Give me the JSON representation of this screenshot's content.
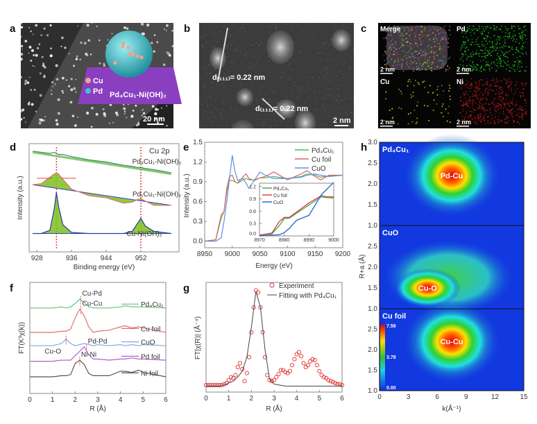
{
  "panel_labels": {
    "a": "a",
    "b": "b",
    "c": "c",
    "d": "d",
    "e": "e",
    "f": "f",
    "g": "g",
    "h": "h"
  },
  "panel_a": {
    "legend_cu": "Cu",
    "legend_pd": "Pd",
    "model_label": "Pd₄Cu₁-Ni(OH)₂",
    "scale_bar": "20 nm",
    "colors": {
      "cu": "#f0a48e",
      "pd": "#3fc6d0",
      "support": "#8a3fc0"
    }
  },
  "panel_b": {
    "spacing_1": "d₍₁₁₁₎= 0.22 nm",
    "spacing_2": "d₍₁₁₁₎= 0.22 nm",
    "scale_bar": "2 nm"
  },
  "panel_c": {
    "maps": [
      {
        "label": "Merge",
        "scale_bar": "2 nm",
        "color": "#c8b070"
      },
      {
        "label": "Pd",
        "scale_bar": "2 nm",
        "color": "#22c022"
      },
      {
        "label": "Cu",
        "scale_bar": "2 nm",
        "color": "#d8d020"
      },
      {
        "label": "Ni",
        "scale_bar": "2 nm",
        "color": "#d01818"
      }
    ]
  },
  "chart_data": [
    {
      "id": "d",
      "type": "line",
      "title": "Cu 2p",
      "xlabel": "Binding energy (eV)",
      "ylabel": "Intensity (a.u.)",
      "xlim": [
        926.2,
        960.8
      ],
      "ylim": [
        0,
        1
      ],
      "xticks": [
        928,
        936,
        944,
        952
      ],
      "reference_lines": [
        932.5,
        952
      ],
      "x": [
        927,
        929,
        931,
        932,
        932.5,
        933,
        934,
        936,
        940,
        944,
        948,
        950,
        951,
        952,
        953,
        955,
        959
      ],
      "series": [
        {
          "name": "Pd₄Cu₁-Ni(OH)₂",
          "color": "#2d8a5a",
          "values": [
            0.93,
            0.92,
            0.91,
            0.92,
            0.91,
            0.9,
            0.9,
            0.88,
            0.85,
            0.83,
            0.8,
            0.79,
            0.78,
            0.78,
            0.77,
            0.76,
            0.73
          ]
        },
        {
          "name": "Pd₁Cu₁-Ni(OH)₂",
          "color": "#e07070",
          "values": [
            0.62,
            0.63,
            0.69,
            0.72,
            0.73,
            0.72,
            0.67,
            0.58,
            0.52,
            0.5,
            0.45,
            0.46,
            0.48,
            0.49,
            0.47,
            0.43,
            0.43
          ]
        },
        {
          "name": "Cu-Ni(OH)₂",
          "color": "#2a3a9a",
          "values": [
            0.17,
            0.17,
            0.2,
            0.4,
            0.55,
            0.42,
            0.25,
            0.18,
            0.17,
            0.17,
            0.17,
            0.19,
            0.25,
            0.31,
            0.24,
            0.19,
            0.17
          ]
        }
      ]
    },
    {
      "id": "e",
      "type": "line",
      "xlabel": "Energy (eV)",
      "ylabel": "Intensity (a.u.)",
      "xlim": [
        8950,
        9200
      ],
      "ylim": [
        -0.1,
        1.5
      ],
      "xticks": [
        8950,
        9000,
        9050,
        9100,
        9150,
        9200
      ],
      "yticks": [
        0.0,
        0.3,
        0.6,
        0.9,
        1.2,
        1.5
      ],
      "legend": "top-right",
      "x": [
        8950,
        8970,
        8980,
        8985,
        8990,
        8995,
        9000,
        9005,
        9010,
        9020,
        9025,
        9030,
        9040,
        9050,
        9060,
        9075,
        9100,
        9125,
        9135,
        9150,
        9160,
        9175,
        9200
      ],
      "series": [
        {
          "name": "Pd₄Cu₁",
          "color": "#50b860",
          "values": [
            0,
            0.02,
            0.35,
            0.45,
            0.75,
            0.92,
            0.92,
            0.9,
            0.88,
            0.93,
            0.95,
            0.93,
            0.93,
            0.96,
            0.96,
            0.98,
            0.95,
            0.98,
            1.02,
            1.0,
            0.97,
            0.99,
            1.0
          ]
        },
        {
          "name": "Cu foil",
          "color": "#e06060",
          "values": [
            0,
            0.02,
            0.4,
            0.45,
            0.8,
            0.98,
            1.0,
            0.9,
            0.88,
            0.98,
            1.02,
            0.95,
            0.92,
            0.96,
            0.98,
            1.05,
            0.93,
            1.02,
            1.07,
            0.98,
            0.93,
            1.0,
            1.0
          ]
        },
        {
          "name": "CuO",
          "color": "#6090e0",
          "values": [
            0,
            0,
            0.05,
            0.3,
            0.6,
            0.95,
            1.3,
            1.05,
            0.92,
            0.95,
            0.88,
            0.8,
            0.92,
            1.05,
            1.0,
            0.95,
            0.95,
            0.97,
            1.0,
            1.02,
            1.0,
            0.98,
            1.0
          ]
        }
      ],
      "inset": {
        "xlim": [
          8970,
          9000
        ],
        "ylim": [
          0,
          1.28
        ],
        "xticks": [
          8970,
          8980,
          8990,
          9000
        ],
        "yticks": [
          0.0,
          0.3,
          0.6,
          0.9,
          1.2
        ],
        "x": [
          8970,
          8975,
          8978,
          8980,
          8982,
          8985,
          8990,
          8995,
          8997,
          9000
        ],
        "series": [
          {
            "name": "Pd₄Cu₁",
            "color": "#40b050",
            "values": [
              0.02,
              0.05,
              0.25,
              0.42,
              0.43,
              0.55,
              0.75,
              0.95,
              0.93,
              0.92
            ]
          },
          {
            "name": "Cu foil",
            "color": "#e04040",
            "values": [
              0.02,
              0.07,
              0.35,
              0.45,
              0.45,
              0.58,
              0.8,
              0.98,
              0.95,
              0.95
            ]
          },
          {
            "name": "CuO",
            "color": "#2a6ad0",
            "values": [
              0,
              0.02,
              0.03,
              0.08,
              0.18,
              0.38,
              0.5,
              1.0,
              1.12,
              1.3
            ]
          }
        ]
      }
    },
    {
      "id": "f",
      "type": "line",
      "xlabel": "R (Å)",
      "ylabel": "FT(K³χ(k))",
      "xlim": [
        0,
        6
      ],
      "ylim": [
        0,
        1
      ],
      "xticks": [
        0,
        1,
        2,
        3,
        4,
        5,
        6
      ],
      "x": [
        0,
        1,
        1.4,
        1.6,
        1.8,
        2.0,
        2.2,
        2.4,
        2.6,
        2.8,
        3,
        3.5,
        4,
        4.2,
        4.5,
        4.8,
        5,
        6
      ],
      "series": [
        {
          "name": "Pd₄Cu₁",
          "color": "#60c080",
          "values": [
            0.77,
            0.77,
            0.78,
            0.77,
            0.78,
            0.81,
            0.85,
            0.82,
            0.78,
            0.77,
            0.77,
            0.77,
            0.78,
            0.79,
            0.78,
            0.78,
            0.78,
            0.77
          ],
          "peak_label": "Cu-Pd",
          "peak_R": 2.25
        },
        {
          "name": "Cu foil",
          "color": "#e07070",
          "values": [
            0.55,
            0.55,
            0.56,
            0.56,
            0.58,
            0.68,
            0.76,
            0.7,
            0.6,
            0.55,
            0.56,
            0.57,
            0.6,
            0.61,
            0.59,
            0.6,
            0.59,
            0.55
          ],
          "peak_label": "Cu-Cu",
          "peak_R": 2.25
        },
        {
          "name": "CuO",
          "color": "#80a8e0",
          "values": [
            0.43,
            0.43,
            0.45,
            0.49,
            0.45,
            0.43,
            0.44,
            0.45,
            0.44,
            0.43,
            0.44,
            0.43,
            0.44,
            0.43,
            0.44,
            0.43,
            0.44,
            0.43
          ],
          "peak_label": "Cu-O",
          "peak_R": 1.6
        },
        {
          "name": "Pd foil",
          "color": "#b060d0",
          "values": [
            0.29,
            0.29,
            0.3,
            0.3,
            0.3,
            0.34,
            0.38,
            0.42,
            0.35,
            0.31,
            0.31,
            0.3,
            0.31,
            0.31,
            0.32,
            0.31,
            0.31,
            0.3
          ],
          "peak_label": "Pd-Pd",
          "peak_R": 2.5
        },
        {
          "name": "Ni foil",
          "color": "#555555",
          "values": [
            0.15,
            0.15,
            0.16,
            0.16,
            0.17,
            0.27,
            0.3,
            0.26,
            0.18,
            0.16,
            0.16,
            0.16,
            0.2,
            0.2,
            0.19,
            0.21,
            0.19,
            0.15
          ],
          "peak_label": "Ni-Ni",
          "peak_R": 2.2
        }
      ]
    },
    {
      "id": "g",
      "type": "scatter",
      "xlabel": "R (Å)",
      "ylabel": "FT|χ(R)| (Å⁻⁴)",
      "xlim": [
        0,
        6
      ],
      "ylim": [
        -0.05,
        1.05
      ],
      "xticks": [
        0,
        1,
        2,
        3,
        4,
        5,
        6
      ],
      "legend": "top-right",
      "experiment": {
        "name": "Experiment",
        "color": "#e03030",
        "x": [
          0,
          0.1,
          0.2,
          0.3,
          0.4,
          0.5,
          0.6,
          0.7,
          0.8,
          0.9,
          1.0,
          1.1,
          1.2,
          1.3,
          1.4,
          1.5,
          1.6,
          1.7,
          1.8,
          1.9,
          2.0,
          2.1,
          2.2,
          2.3,
          2.4,
          2.5,
          2.6,
          2.7,
          2.8,
          2.9,
          3.0,
          3.1,
          3.2,
          3.3,
          3.4,
          3.5,
          3.6,
          3.7,
          3.8,
          3.9,
          4.0,
          4.1,
          4.2,
          4.3,
          4.4,
          4.5,
          4.6,
          4.7,
          4.8,
          4.9,
          5.0,
          5.1,
          5.2,
          5.3,
          5.4,
          5.5,
          5.6,
          5.7,
          5.8,
          5.9,
          6.0
        ],
        "y": [
          0.02,
          0.02,
          0.02,
          0.02,
          0.02,
          0.02,
          0.02,
          0.02,
          0.03,
          0.04,
          0.07,
          0.1,
          0.09,
          0.12,
          0.2,
          0.24,
          0.18,
          0.06,
          0.14,
          0.3,
          0.55,
          0.8,
          0.97,
          0.95,
          0.8,
          0.55,
          0.3,
          0.12,
          0.07,
          0.06,
          0.07,
          0.1,
          0.13,
          0.17,
          0.17,
          0.15,
          0.14,
          0.16,
          0.22,
          0.28,
          0.33,
          0.35,
          0.31,
          0.24,
          0.2,
          0.22,
          0.26,
          0.28,
          0.27,
          0.22,
          0.16,
          0.12,
          0.1,
          0.09,
          0.07,
          0.06,
          0.05,
          0.04,
          0.03,
          0.03,
          0.02
        ]
      },
      "fit": {
        "name": "Fitting with Pd₄Cu₁",
        "color": "#444444",
        "x": [
          0,
          0.6,
          0.8,
          1.0,
          1.2,
          1.4,
          1.6,
          1.8,
          2.0,
          2.2,
          2.4,
          2.6,
          2.8,
          3.0,
          3.5,
          6.0
        ],
        "y": [
          0.01,
          0.01,
          0.02,
          0.04,
          0.06,
          0.1,
          0.16,
          0.3,
          0.6,
          0.96,
          0.8,
          0.38,
          0.08,
          0.03,
          0.01,
          0.01
        ]
      }
    },
    {
      "id": "h",
      "type": "heatmap",
      "xlabel": "k(Å⁻¹)",
      "ylabel": "R+a (Å)",
      "xlim": [
        0,
        15
      ],
      "ylim": [
        1.0,
        3.0
      ],
      "xticks": [
        0,
        3,
        6,
        9,
        12,
        15
      ],
      "yticks": [
        1.0,
        1.5,
        2.0,
        2.5,
        3.0
      ],
      "colorbar": {
        "min": "0.00",
        "mid": "3.78",
        "max": "7.56"
      },
      "panels": [
        {
          "name": "Pd₄Cu₁",
          "peak_label": "Pd-Cu",
          "peak_k": 7.5,
          "peak_R": 2.2
        },
        {
          "name": "CuO",
          "peak_label": "Cu-O",
          "peak_k": 5.0,
          "peak_R": 1.5
        },
        {
          "name": "Cu foil",
          "peak_label": "Cu-Cu",
          "peak_k": 7.5,
          "peak_R": 2.2
        }
      ]
    }
  ]
}
